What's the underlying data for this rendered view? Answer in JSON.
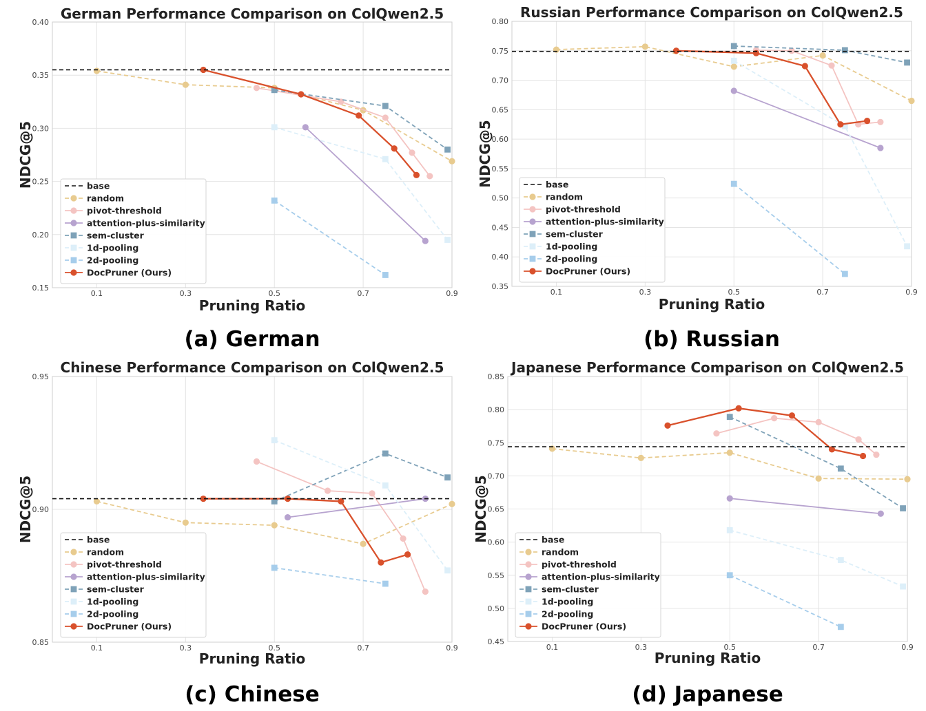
{
  "figure": {
    "series_styles": {
      "base": {
        "color": "#111111",
        "dash": "6,4",
        "marker": "none"
      },
      "random": {
        "color": "#E8CB8F",
        "dash": "6,4",
        "marker": "circle"
      },
      "pivot-threshold": {
        "color": "#F4C4C2",
        "dash": "",
        "marker": "circle"
      },
      "attention-plus-similarity": {
        "color": "#B7A3CF",
        "dash": "",
        "marker": "circle"
      },
      "sem-cluster": {
        "color": "#7FA2B8",
        "dash": "6,4",
        "marker": "square"
      },
      "1d-pooling": {
        "color": "#DDEFF9",
        "dash": "6,4",
        "marker": "square"
      },
      "2d-pooling": {
        "color": "#A6CDEB",
        "dash": "6,4",
        "marker": "square"
      },
      "DocPruner (Ours)": {
        "color": "#D9512C",
        "dash": "",
        "marker": "circle"
      }
    },
    "legend_entries": [
      "base",
      "random",
      "pivot-threshold",
      "attention-plus-similarity",
      "sem-cluster",
      "1d-pooling",
      "2d-pooling",
      "DocPruner (Ours)"
    ]
  },
  "chart_data": [
    {
      "type": "line",
      "caption": "(a) German",
      "title": "German Performance Comparison on ColQwen2.5",
      "xlabel": "Pruning Ratio",
      "ylabel": "NDCG@5",
      "xlim": [
        0,
        0.9
      ],
      "ylim": [
        0.15,
        0.4
      ],
      "xticks": [
        0.1,
        0.3,
        0.5,
        0.7,
        0.9
      ],
      "xtick_labels": [
        "0.1",
        "0.3",
        "0.5",
        "0.7",
        "0.9"
      ],
      "yticks": [
        0.15,
        0.2,
        0.25,
        0.3,
        0.35,
        0.4
      ],
      "ytick_labels": [
        "0.15",
        "0.20",
        "0.25",
        "0.30",
        "0.35",
        "0.40"
      ],
      "legend_position": "lower-left",
      "base": 0.355,
      "series": [
        {
          "name": "random",
          "points": [
            [
              0.1,
              0.354
            ],
            [
              0.3,
              0.341
            ],
            [
              0.5,
              0.338
            ],
            [
              0.7,
              0.317
            ],
            [
              0.9,
              0.269
            ]
          ]
        },
        {
          "name": "pivot-threshold",
          "points": [
            [
              0.46,
              0.338
            ],
            [
              0.65,
              0.325
            ],
            [
              0.75,
              0.31
            ],
            [
              0.81,
              0.277
            ],
            [
              0.85,
              0.255
            ]
          ]
        },
        {
          "name": "attention-plus-similarity",
          "points": [
            [
              0.57,
              0.301
            ],
            [
              0.84,
              0.194
            ]
          ]
        },
        {
          "name": "sem-cluster",
          "points": [
            [
              0.5,
              0.336
            ],
            [
              0.75,
              0.321
            ],
            [
              0.89,
              0.28
            ]
          ]
        },
        {
          "name": "1d-pooling",
          "points": [
            [
              0.5,
              0.301
            ],
            [
              0.75,
              0.271
            ],
            [
              0.89,
              0.195
            ]
          ]
        },
        {
          "name": "2d-pooling",
          "points": [
            [
              0.5,
              0.232
            ],
            [
              0.75,
              0.162
            ]
          ]
        },
        {
          "name": "DocPruner (Ours)",
          "points": [
            [
              0.34,
              0.355
            ],
            [
              0.56,
              0.332
            ],
            [
              0.69,
              0.312
            ],
            [
              0.77,
              0.281
            ],
            [
              0.82,
              0.256
            ]
          ]
        }
      ]
    },
    {
      "type": "line",
      "caption": "(b) Russian",
      "title": "Russian Performance Comparison on ColQwen2.5",
      "xlabel": "Pruning Ratio",
      "ylabel": "NDCG@5",
      "xlim": [
        0,
        0.9
      ],
      "ylim": [
        0.35,
        0.8
      ],
      "xticks": [
        0.1,
        0.3,
        0.5,
        0.7,
        0.9
      ],
      "xtick_labels": [
        "0.1",
        "0.3",
        "0.5",
        "0.7",
        "0.9"
      ],
      "yticks": [
        0.35,
        0.4,
        0.45,
        0.5,
        0.55,
        0.6,
        0.65,
        0.7,
        0.75,
        0.8
      ],
      "ytick_labels": [
        "0.35",
        "0.40",
        "0.45",
        "0.50",
        "0.55",
        "0.60",
        "0.65",
        "0.70",
        "0.75",
        "0.80"
      ],
      "legend_position": "lower-left",
      "base": 0.749,
      "series": [
        {
          "name": "random",
          "points": [
            [
              0.1,
              0.752
            ],
            [
              0.3,
              0.757
            ],
            [
              0.5,
              0.723
            ],
            [
              0.7,
              0.742
            ],
            [
              0.9,
              0.665
            ]
          ]
        },
        {
          "name": "pivot-threshold",
          "points": [
            [
              0.55,
              0.751
            ],
            [
              0.63,
              0.75
            ],
            [
              0.72,
              0.725
            ],
            [
              0.78,
              0.625
            ],
            [
              0.83,
              0.629
            ]
          ]
        },
        {
          "name": "attention-plus-similarity",
          "points": [
            [
              0.5,
              0.682
            ],
            [
              0.83,
              0.585
            ]
          ]
        },
        {
          "name": "sem-cluster",
          "points": [
            [
              0.5,
              0.758
            ],
            [
              0.75,
              0.751
            ],
            [
              0.89,
              0.73
            ]
          ]
        },
        {
          "name": "1d-pooling",
          "points": [
            [
              0.5,
              0.733
            ],
            [
              0.75,
              0.622
            ],
            [
              0.89,
              0.418
            ]
          ]
        },
        {
          "name": "2d-pooling",
          "points": [
            [
              0.5,
              0.524
            ],
            [
              0.75,
              0.371
            ]
          ]
        },
        {
          "name": "DocPruner (Ours)",
          "points": [
            [
              0.37,
              0.75
            ],
            [
              0.55,
              0.746
            ],
            [
              0.66,
              0.724
            ],
            [
              0.74,
              0.625
            ],
            [
              0.8,
              0.631
            ]
          ]
        }
      ]
    },
    {
      "type": "line",
      "caption": "(c) Chinese",
      "title": "Chinese Performance Comparison on ColQwen2.5",
      "xlabel": "Pruning Ratio",
      "ylabel": "NDCG@5",
      "xlim": [
        0,
        0.9
      ],
      "ylim": [
        0.85,
        0.95
      ],
      "xticks": [
        0.1,
        0.3,
        0.5,
        0.7,
        0.9
      ],
      "xtick_labels": [
        "0.1",
        "0.3",
        "0.5",
        "0.7",
        "0.9"
      ],
      "yticks": [
        0.85,
        0.9,
        0.95
      ],
      "ytick_labels": [
        "0.85",
        "0.90",
        "0.95"
      ],
      "legend_position": "lower-left",
      "base": 0.904,
      "series": [
        {
          "name": "random",
          "points": [
            [
              0.1,
              0.903
            ],
            [
              0.3,
              0.895
            ],
            [
              0.5,
              0.894
            ],
            [
              0.7,
              0.887
            ],
            [
              0.9,
              0.902
            ]
          ]
        },
        {
          "name": "pivot-threshold",
          "points": [
            [
              0.46,
              0.918
            ],
            [
              0.62,
              0.907
            ],
            [
              0.72,
              0.906
            ],
            [
              0.79,
              0.889
            ],
            [
              0.84,
              0.869
            ]
          ]
        },
        {
          "name": "attention-plus-similarity",
          "points": [
            [
              0.53,
              0.897
            ],
            [
              0.84,
              0.904
            ]
          ]
        },
        {
          "name": "sem-cluster",
          "points": [
            [
              0.5,
              0.903
            ],
            [
              0.75,
              0.921
            ],
            [
              0.89,
              0.912
            ]
          ]
        },
        {
          "name": "1d-pooling",
          "points": [
            [
              0.5,
              0.926
            ],
            [
              0.75,
              0.909
            ],
            [
              0.89,
              0.877
            ]
          ]
        },
        {
          "name": "2d-pooling",
          "points": [
            [
              0.5,
              0.878
            ],
            [
              0.75,
              0.872
            ]
          ]
        },
        {
          "name": "DocPruner (Ours)",
          "points": [
            [
              0.34,
              0.904
            ],
            [
              0.53,
              0.904
            ],
            [
              0.65,
              0.903
            ],
            [
              0.74,
              0.88
            ],
            [
              0.8,
              0.883
            ]
          ]
        }
      ]
    },
    {
      "type": "line",
      "caption": "(d) Japanese",
      "title": "Japanese Performance Comparison on ColQwen2.5",
      "xlabel": "Pruning Ratio",
      "ylabel": "NDCG@5",
      "xlim": [
        0,
        0.9
      ],
      "ylim": [
        0.45,
        0.85
      ],
      "xticks": [
        0.1,
        0.3,
        0.5,
        0.7,
        0.9
      ],
      "xtick_labels": [
        "0.1",
        "0.3",
        "0.5",
        "0.7",
        "0.9"
      ],
      "yticks": [
        0.45,
        0.5,
        0.55,
        0.6,
        0.65,
        0.7,
        0.75,
        0.8,
        0.85
      ],
      "ytick_labels": [
        "0.45",
        "0.50",
        "0.55",
        "0.60",
        "0.65",
        "0.70",
        "0.75",
        "0.80",
        "0.85"
      ],
      "legend_position": "lower-left",
      "base": 0.744,
      "series": [
        {
          "name": "random",
          "points": [
            [
              0.1,
              0.741
            ],
            [
              0.3,
              0.727
            ],
            [
              0.5,
              0.735
            ],
            [
              0.7,
              0.696
            ],
            [
              0.9,
              0.695
            ]
          ]
        },
        {
          "name": "pivot-threshold",
          "points": [
            [
              0.47,
              0.764
            ],
            [
              0.6,
              0.787
            ],
            [
              0.7,
              0.781
            ],
            [
              0.79,
              0.755
            ],
            [
              0.83,
              0.732
            ]
          ]
        },
        {
          "name": "attention-plus-similarity",
          "points": [
            [
              0.5,
              0.666
            ],
            [
              0.84,
              0.643
            ]
          ]
        },
        {
          "name": "sem-cluster",
          "points": [
            [
              0.5,
              0.789
            ],
            [
              0.75,
              0.711
            ],
            [
              0.89,
              0.651
            ]
          ]
        },
        {
          "name": "1d-pooling",
          "points": [
            [
              0.5,
              0.618
            ],
            [
              0.75,
              0.573
            ],
            [
              0.89,
              0.533
            ]
          ]
        },
        {
          "name": "2d-pooling",
          "points": [
            [
              0.5,
              0.55
            ],
            [
              0.75,
              0.472
            ]
          ]
        },
        {
          "name": "DocPruner (Ours)",
          "points": [
            [
              0.36,
              0.776
            ],
            [
              0.52,
              0.802
            ],
            [
              0.64,
              0.791
            ],
            [
              0.73,
              0.74
            ],
            [
              0.8,
              0.73
            ]
          ]
        }
      ]
    }
  ]
}
